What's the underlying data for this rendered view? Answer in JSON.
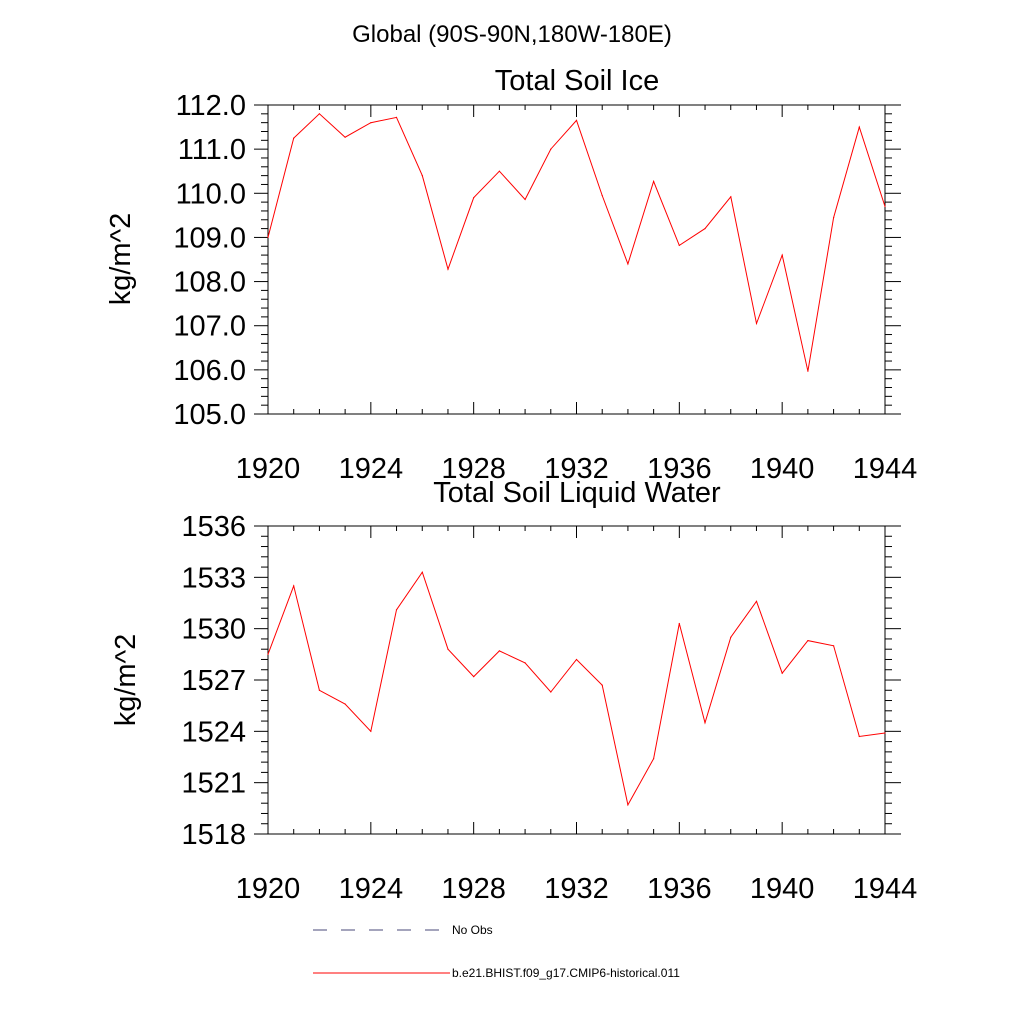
{
  "figure": {
    "title": "Global (90S-90N,180W-180E)"
  },
  "colors": {
    "series": "#ff0000",
    "obs": "#4a4a7a",
    "axis": "#000000"
  },
  "legend": {
    "obs_label": "No Obs",
    "model_label": "b.e21.BHIST.f09_g17.CMIP6-historical.011"
  },
  "chart_data": [
    {
      "type": "line",
      "title": "Total Soil Ice",
      "xlabel": "",
      "ylabel": "kg/m^2",
      "xlim": [
        1920,
        1944
      ],
      "ylim": [
        105.0,
        112.0
      ],
      "xticks": [
        1920,
        1924,
        1928,
        1932,
        1936,
        1940,
        1944
      ],
      "yticks": [
        "105.0",
        "106.0",
        "107.0",
        "108.0",
        "109.0",
        "110.0",
        "111.0",
        "112.0"
      ],
      "ytick_values": [
        105,
        106,
        107,
        108,
        109,
        110,
        111,
        112
      ],
      "grid": false,
      "x": [
        1920,
        1921,
        1922,
        1923,
        1924,
        1925,
        1926,
        1927,
        1928,
        1929,
        1930,
        1931,
        1932,
        1933,
        1934,
        1935,
        1936,
        1937,
        1938,
        1939,
        1940,
        1941,
        1942,
        1943,
        1944
      ],
      "series": [
        {
          "name": "b.e21.BHIST.f09_g17.CMIP6-historical.011",
          "values": [
            109.0,
            111.25,
            111.8,
            111.27,
            111.6,
            111.72,
            110.4,
            108.28,
            109.9,
            110.5,
            109.86,
            111.0,
            111.65,
            109.95,
            108.4,
            110.27,
            108.82,
            109.2,
            109.92,
            107.05,
            108.6,
            105.97,
            109.45,
            111.5,
            109.7
          ]
        }
      ]
    },
    {
      "type": "line",
      "title": "Total Soil Liquid Water",
      "xlabel": "",
      "ylabel": "kg/m^2",
      "xlim": [
        1920,
        1944
      ],
      "ylim": [
        1518,
        1536
      ],
      "xticks": [
        1920,
        1924,
        1928,
        1932,
        1936,
        1940,
        1944
      ],
      "yticks": [
        "1518",
        "1521",
        "1524",
        "1527",
        "1530",
        "1533",
        "1536"
      ],
      "ytick_values": [
        1518,
        1521,
        1524,
        1527,
        1530,
        1533,
        1536
      ],
      "grid": false,
      "x": [
        1920,
        1921,
        1922,
        1923,
        1924,
        1925,
        1926,
        1927,
        1928,
        1929,
        1930,
        1931,
        1932,
        1933,
        1934,
        1935,
        1936,
        1937,
        1938,
        1939,
        1940,
        1941,
        1942,
        1943,
        1944
      ],
      "series": [
        {
          "name": "b.e21.BHIST.f09_g17.CMIP6-historical.011",
          "values": [
            1528.5,
            1532.5,
            1526.4,
            1525.6,
            1524.0,
            1531.1,
            1533.3,
            1528.8,
            1527.2,
            1528.7,
            1528.0,
            1526.3,
            1528.2,
            1526.7,
            1519.7,
            1522.4,
            1530.3,
            1524.5,
            1529.5,
            1531.6,
            1527.4,
            1529.3,
            1529.0,
            1523.7,
            1523.9
          ]
        }
      ]
    }
  ]
}
